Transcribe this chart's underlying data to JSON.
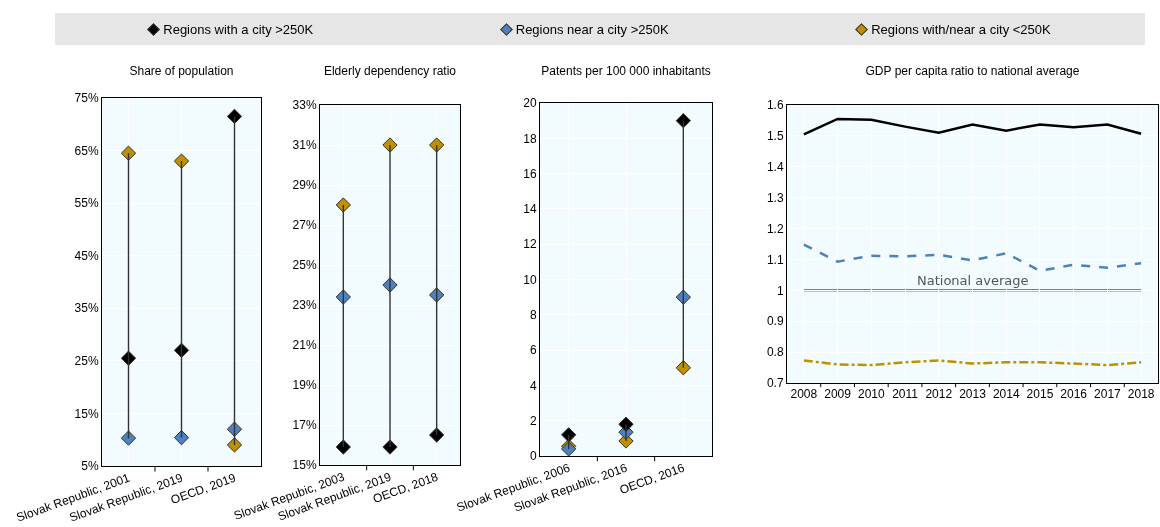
{
  "chart_data": [
    {
      "type": "scatter",
      "title": "Share of population",
      "categories": [
        "Slovak Republic, 2001",
        "Slovak Republic, 2019",
        "OECD, 2019"
      ],
      "marker": "diamond",
      "legend": "top",
      "grid": true,
      "ylim": [
        5,
        75
      ],
      "yticks": [
        {
          "value": 5,
          "label": "5%"
        },
        {
          "value": 15,
          "label": "15%"
        },
        {
          "value": 25,
          "label": "25%"
        },
        {
          "value": 35,
          "label": "35%"
        },
        {
          "value": 45,
          "label": "45%"
        },
        {
          "value": 55,
          "label": "55%"
        },
        {
          "value": 65,
          "label": "65%"
        },
        {
          "value": 75,
          "label": "75%"
        }
      ],
      "series": [
        {
          "name": "Regions with a city >250K",
          "color": "#000000",
          "values": [
            25.5,
            27,
            71.5
          ]
        },
        {
          "name": "Regions near a city >250K",
          "color": "#4f81bd",
          "values": [
            10.3,
            10.4,
            12
          ]
        },
        {
          "name": "Regions with/near a city <250K",
          "color": "#bf9000",
          "values": [
            64.5,
            63,
            9
          ]
        }
      ]
    },
    {
      "type": "scatter",
      "title": "Elderly dependency ratio",
      "categories": [
        "Slovak Repubic, 2003",
        "Slovak Republic, 2019",
        "OECD, 2018"
      ],
      "marker": "diamond",
      "grid": true,
      "ylim": [
        15,
        33
      ],
      "yticks": [
        {
          "value": 15,
          "label": "15%"
        },
        {
          "value": 17,
          "label": "17%"
        },
        {
          "value": 19,
          "label": "19%"
        },
        {
          "value": 21,
          "label": "21%"
        },
        {
          "value": 23,
          "label": "23%"
        },
        {
          "value": 25,
          "label": "25%"
        },
        {
          "value": 27,
          "label": "27%"
        },
        {
          "value": 29,
          "label": "29%"
        },
        {
          "value": 31,
          "label": "31%"
        },
        {
          "value": 33,
          "label": "33%"
        }
      ],
      "series": [
        {
          "color": "#000000",
          "values": [
            15.9,
            15.9,
            16.5
          ]
        },
        {
          "color": "#4f81bd",
          "values": [
            23.4,
            24,
            23.5
          ]
        },
        {
          "color": "#bf9000",
          "values": [
            28,
            31,
            31
          ]
        }
      ]
    },
    {
      "type": "scatter",
      "title": "Patents per 100 000 inhabitants",
      "categories": [
        "Slovak Republic, 2006",
        "Slovak Republic, 2016",
        "OECD, 2016"
      ],
      "marker": "diamond",
      "grid": true,
      "ylim": [
        0,
        20
      ],
      "yticks": [
        0,
        2,
        4,
        6,
        8,
        10,
        12,
        14,
        16,
        18,
        20
      ],
      "series": [
        {
          "color": "#000000",
          "values": [
            1.2,
            1.8,
            19
          ]
        },
        {
          "color": "#4f81bd",
          "values": [
            0.4,
            1.35,
            9
          ]
        },
        {
          "color": "#bf9000",
          "values": [
            0.55,
            0.85,
            5
          ]
        }
      ]
    },
    {
      "type": "line",
      "title": "GDP per capita ratio to national average",
      "categories": [
        "2008",
        "2009",
        "2010",
        "2011",
        "2012",
        "2013",
        "2014",
        "2015",
        "2016",
        "2017",
        "2018"
      ],
      "grid": true,
      "ylim": [
        0.7,
        1.6
      ],
      "yticks": [
        {
          "value": 0.7,
          "label": "0.7"
        },
        {
          "value": 0.8,
          "label": "0.8"
        },
        {
          "value": 0.9,
          "label": "0.9"
        },
        1,
        {
          "value": 1.1,
          "label": "1.1"
        },
        {
          "value": 1.2,
          "label": "1.2"
        },
        {
          "value": 1.3,
          "label": "1.3"
        },
        {
          "value": 1.4,
          "label": "1.4"
        },
        {
          "value": 1.5,
          "label": "1.5"
        },
        {
          "value": 1.6,
          "label": "1.6"
        }
      ],
      "ref_lines": [
        {
          "axis": "y",
          "value": 1,
          "label": "National average",
          "color": "#808080"
        }
      ],
      "series": [
        {
          "color": "#000000",
          "line_style": "solid",
          "values": [
            1.505,
            1.555,
            1.552,
            1.53,
            1.51,
            1.537,
            1.517,
            1.537,
            1.528,
            1.537,
            1.507
          ]
        },
        {
          "color": "#4f81bd",
          "line_style": "dashed",
          "values": [
            1.148,
            1.093,
            1.112,
            1.11,
            1.115,
            1.097,
            1.12,
            1.063,
            1.083,
            1.073,
            1.088
          ]
        },
        {
          "color": "#bf9000",
          "line_style": "dashdot",
          "values": [
            0.773,
            0.76,
            0.758,
            0.767,
            0.773,
            0.763,
            0.767,
            0.767,
            0.763,
            0.758,
            0.767
          ]
        }
      ]
    }
  ]
}
